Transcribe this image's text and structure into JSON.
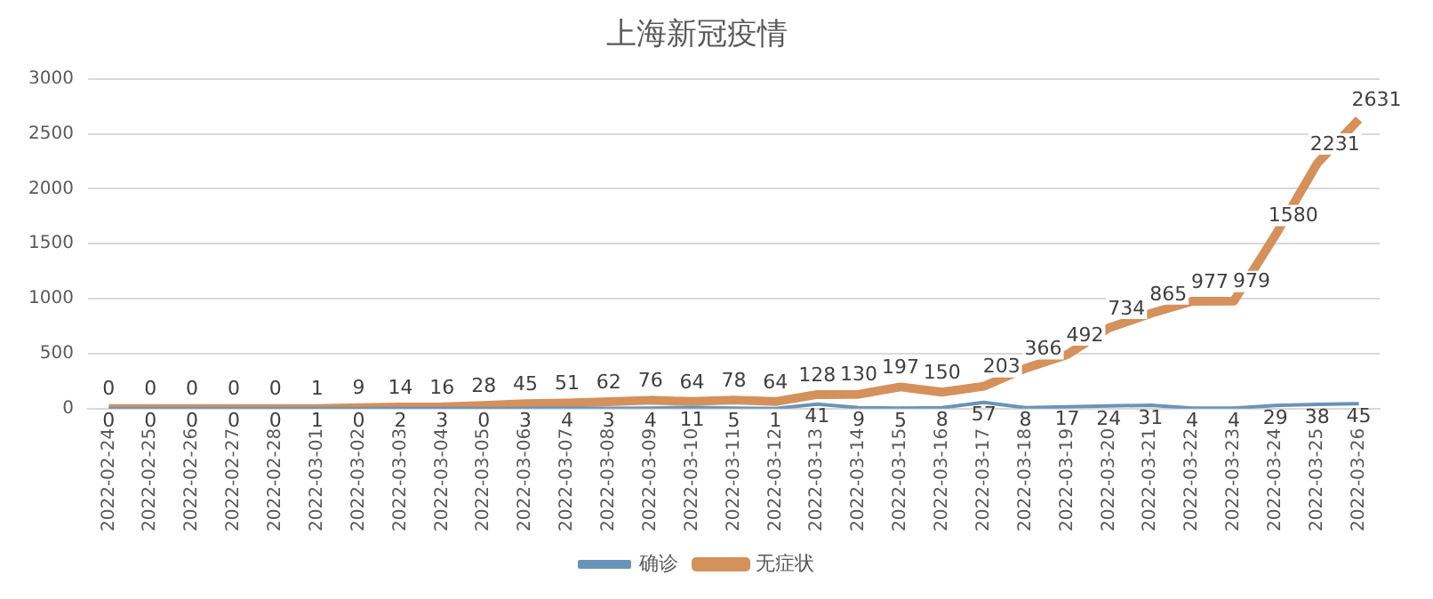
{
  "chart_data": {
    "type": "line",
    "title": "上海新冠疫情",
    "categories": [
      "2022-02-24",
      "2022-02-25",
      "2022-02-26",
      "2022-02-27",
      "2022-02-28",
      "2022-03-01",
      "2022-03-02",
      "2022-03-03",
      "2022-03-04",
      "2022-03-05",
      "2022-03-06",
      "2022-03-07",
      "2022-03-08",
      "2022-03-09",
      "2022-03-10",
      "2022-03-11",
      "2022-03-12",
      "2022-03-13",
      "2022-03-14",
      "2022-03-15",
      "2022-03-16",
      "2022-03-17",
      "2022-03-18",
      "2022-03-19",
      "2022-03-20",
      "2022-03-21",
      "2022-03-22",
      "2022-03-23",
      "2022-03-24",
      "2022-03-25",
      "2022-03-26"
    ],
    "series": [
      {
        "name": "确诊",
        "color": "#6a93b8",
        "values": [
          0,
          0,
          0,
          0,
          0,
          1,
          0,
          2,
          3,
          0,
          3,
          4,
          3,
          4,
          11,
          5,
          1,
          41,
          9,
          5,
          8,
          57,
          8,
          17,
          24,
          31,
          4,
          4,
          29,
          38,
          45
        ]
      },
      {
        "name": "无症状",
        "color": "#d4915c",
        "values": [
          0,
          0,
          0,
          0,
          0,
          1,
          9,
          14,
          16,
          28,
          45,
          51,
          62,
          76,
          64,
          78,
          64,
          128,
          130,
          197,
          150,
          203,
          366,
          492,
          734,
          865,
          977,
          979,
          1580,
          2231,
          2631
        ]
      }
    ],
    "ylim": [
      0,
      3000
    ],
    "yticks": [
      0,
      500,
      1000,
      1500,
      2000,
      2500,
      3000
    ],
    "grid": "y",
    "legend": "bottom",
    "data_labels": true,
    "marker": "none"
  }
}
